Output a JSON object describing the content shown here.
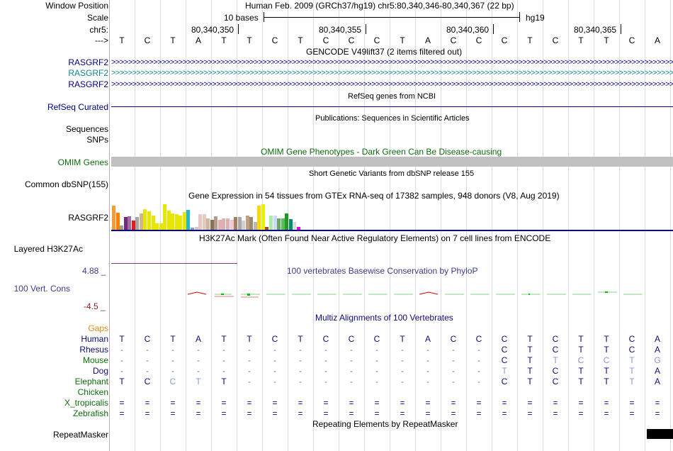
{
  "colors": {
    "navy": "#000080",
    "teal": "#12858d",
    "green": "#0d6c0d",
    "orange": "#de8c14",
    "purple": "#3c3c8c",
    "red": "#8a2222",
    "omim_gray": "#c0c0c0",
    "track_blue": "#0c0c78"
  },
  "header": {
    "window_position_label": "Window Position",
    "scale_label": "Scale",
    "chr_label": "chr5:",
    "strand_label": "--->",
    "assembly_title": "Human Feb. 2009 (GRCh37/hg19)   chr5:80,340,346-80,340,367 (22 bp)",
    "scale_text": "10 bases",
    "scale_build": "hg19",
    "positions": [
      "80,340,350",
      "80,340,355",
      "80,340,360",
      "80,340,365"
    ],
    "sequence": [
      "T",
      "C",
      "T",
      "A",
      "T",
      "T",
      "C",
      "T",
      "C",
      "C",
      "C",
      "T",
      "A",
      "C",
      "C",
      "C",
      "T",
      "C",
      "T",
      "T",
      "C",
      "A"
    ]
  },
  "tracks": {
    "gencode_title": "GENCODE V49lift37 (2 items filtered out)",
    "gencode_rows": [
      "RASGRF2",
      "RASGRF2",
      "RASGRF2"
    ],
    "refseq_title": "RefSeq genes from NCBI",
    "refseq_label": "RefSeq Curated",
    "pubs_title": "Publications: Sequences in Scientific Articles",
    "sequences_label": "Sequences",
    "snps_label": "SNPs",
    "omim_title": "OMIM Gene Phenotypes - Dark Green Can Be Disease-causing",
    "omim_label": "OMIM Genes",
    "dbsnp_title": "Short Genetic Variants from dbSNP release 155",
    "dbsnp_label": "Common dbSNP(155)",
    "gtex_title": "Gene Expression in 54 tissues from GTEx RNA-seq of 17382 samples, 948 donors (V8, Aug 2019)",
    "gtex_label": "RASGRF2",
    "h3k27_title": "H3K27Ac Mark (Often Found Near Active Regulatory Elements) on 7 cell lines from ENCODE",
    "h3k27_label": "Layered H3K27Ac",
    "cons_title": "100 vertebrates Basewise Conservation by PhyloP",
    "cons_label": "100 Vert. Cons",
    "cons_max": "4.88 _",
    "cons_min": "-4.5 _",
    "multiz_title": "Multiz Alignments of 100 Vertebrates",
    "gaps_label": "Gaps",
    "repeat_title": "Repeating Elements by RepeatMasker",
    "repeat_label": "RepeatMasker"
  },
  "gtex_bars": [
    {
      "v": 0.95,
      "c": "#f29d36"
    },
    {
      "v": 0.68,
      "c": "#ff7f00"
    },
    {
      "v": 0.18,
      "c": "#9d9d9d"
    },
    {
      "v": 0.5,
      "c": "#6e2c7e"
    },
    {
      "v": 0.52,
      "c": "#a36d9e"
    },
    {
      "v": 0.35,
      "c": "#e31a1c"
    },
    {
      "v": 0.5,
      "c": "#a6a6a6"
    },
    {
      "v": 0.65,
      "c": "#d2b48c"
    },
    {
      "v": 0.8,
      "c": "#e6e600"
    },
    {
      "v": 0.72,
      "c": "#e6e600"
    },
    {
      "v": 0.55,
      "c": "#e6e600"
    },
    {
      "v": 0.25,
      "c": "#e6e600"
    },
    {
      "v": 0.25,
      "c": "#e6e600"
    },
    {
      "v": 1.0,
      "c": "#e6e600"
    },
    {
      "v": 0.75,
      "c": "#e6e600"
    },
    {
      "v": 0.65,
      "c": "#e6e600"
    },
    {
      "v": 0.6,
      "c": "#e6e600"
    },
    {
      "v": 0.55,
      "c": "#e6e600"
    },
    {
      "v": 0.7,
      "c": "#e6e600"
    },
    {
      "v": 0.78,
      "c": "#22b8cf"
    },
    {
      "v": 0.08,
      "c": "#7fa3c9"
    },
    {
      "v": 0.1,
      "c": "#cccccc"
    },
    {
      "v": 0.6,
      "c": "#e8c9c0"
    },
    {
      "v": 0.6,
      "c": "#e8c9c0"
    },
    {
      "v": 0.45,
      "c": "#cdb79e"
    },
    {
      "v": 0.4,
      "c": "#8b6e5a"
    },
    {
      "v": 0.52,
      "c": "#b39d8a"
    },
    {
      "v": 0.4,
      "c": "#e0b0b0"
    },
    {
      "v": 0.45,
      "c": "#e0b0b0"
    },
    {
      "v": 0.45,
      "c": "#e0b0b0"
    },
    {
      "v": 0.4,
      "c": "#f7c6d0"
    },
    {
      "v": 0.5,
      "c": "#a08060"
    },
    {
      "v": 0.5,
      "c": "#aaaaaa"
    },
    {
      "v": 0.35,
      "c": "#d0d0d0"
    },
    {
      "v": 0.55,
      "c": "#c0a080"
    },
    {
      "v": 0.5,
      "c": "#9a8b6e"
    },
    {
      "v": 0.3,
      "c": "#b8b8b8"
    },
    {
      "v": 0.95,
      "c": "#ffd700"
    },
    {
      "v": 1.0,
      "c": "#eeee00"
    },
    {
      "v": 0.12,
      "c": "#a0522d"
    },
    {
      "v": 0.55,
      "c": "#aaeeaa"
    },
    {
      "v": 0.55,
      "c": "#cfd8ff"
    },
    {
      "v": 0.45,
      "c": "#66aa66"
    },
    {
      "v": 0.45,
      "c": "#55c055"
    },
    {
      "v": 0.65,
      "c": "#229922"
    },
    {
      "v": 0.42,
      "c": "#0a8a6e"
    },
    {
      "v": 0.3,
      "c": "#dcdcdc"
    },
    {
      "v": 0.12,
      "c": "#ee00ee"
    }
  ],
  "multiz": [
    {
      "species": "Human",
      "color": "#0c0c78",
      "cells": [
        "T",
        "C",
        "T",
        "A",
        "T",
        "T",
        "C",
        "T",
        "C",
        "C",
        "C",
        "T",
        "A",
        "C",
        "C",
        "C",
        "T",
        "C",
        "T",
        "T",
        "C",
        "A"
      ]
    },
    {
      "species": "Rhesus",
      "color": "#0c0c78",
      "cells": [
        "-",
        "-",
        "-",
        "-",
        "-",
        "-",
        "-",
        "-",
        "-",
        "-",
        "-",
        "-",
        "-",
        "-",
        "-",
        "C",
        "T",
        "C",
        "T",
        "T",
        "C",
        "A"
      ]
    },
    {
      "species": "Mouse",
      "color": "#0d6c0d",
      "cells": [
        "-",
        "-",
        "-",
        "-",
        "-",
        "-",
        "-",
        "-",
        "-",
        "-",
        "-",
        "-",
        "-",
        "-",
        "-",
        "C",
        "T",
        "t",
        "c",
        "c",
        "t",
        "g"
      ]
    },
    {
      "species": "Dog",
      "color": "#0c0c78",
      "cells": [
        "-",
        "-",
        "-",
        "-",
        "-",
        "-",
        "-",
        "-",
        "-",
        "-",
        "-",
        "-",
        "-",
        "-",
        "-",
        "t",
        "T",
        "C",
        "T",
        "T",
        "t",
        "A"
      ]
    },
    {
      "species": "Elephant",
      "color": "#0d6c0d",
      "cells": [
        "T",
        "C",
        "c",
        "t",
        "T",
        "-",
        "-",
        "-",
        "-",
        "-",
        "-",
        "-",
        "-",
        "-",
        "-",
        "C",
        "T",
        "C",
        "T",
        "T",
        "t",
        "A"
      ]
    },
    {
      "species": "Chicken",
      "color": "#0d6c0d",
      "cells": [
        "",
        "",
        "",
        "",
        "",
        "",
        "",
        "",
        "",
        "",
        "",
        "",
        "",
        "",
        "",
        "",
        "",
        "",
        "",
        "",
        "",
        ""
      ]
    },
    {
      "species": "X_tropicalis",
      "color": "#0d6c0d",
      "cells": [
        "=",
        "=",
        "=",
        "=",
        "=",
        "=",
        "=",
        "=",
        "=",
        "=",
        "=",
        "=",
        "=",
        "=",
        "=",
        "=",
        "=",
        "=",
        "=",
        "=",
        "=",
        "="
      ]
    },
    {
      "species": "Zebrafish",
      "color": "#0d6c0d",
      "cells": [
        "=",
        "=",
        "=",
        "=",
        "=",
        "=",
        "=",
        "=",
        "=",
        "=",
        "=",
        "=",
        "=",
        "=",
        "=",
        "=",
        "=",
        "=",
        "=",
        "=",
        "=",
        "="
      ]
    }
  ]
}
